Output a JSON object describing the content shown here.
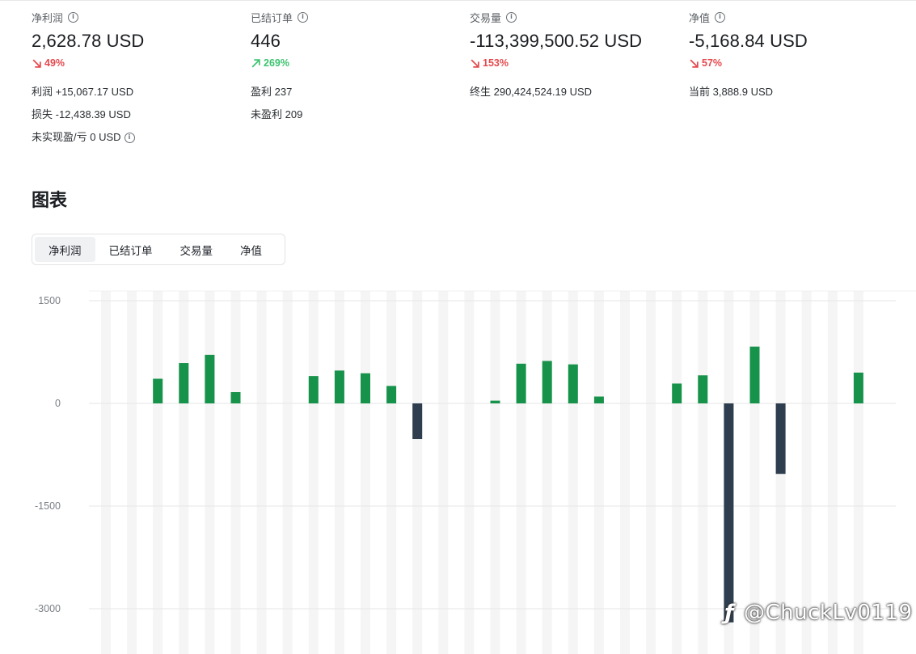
{
  "stats": [
    {
      "label": "净利润",
      "value": "2,628.78 USD",
      "change": "49%",
      "direction": "down",
      "details": [
        "利润 +15,067.17 USD",
        "损失 -12,438.39 USD",
        "未实现盈/亏 0 USD"
      ]
    },
    {
      "label": "已结订单",
      "value": "446",
      "change": "269%",
      "direction": "up",
      "details": [
        "盈利 237",
        "未盈利 209"
      ]
    },
    {
      "label": "交易量",
      "value": "-113,399,500.52 USD",
      "change": "153%",
      "direction": "down",
      "details": [
        "终生 290,424,524.19 USD"
      ]
    },
    {
      "label": "净值",
      "value": "-5,168.84 USD",
      "change": "57%",
      "direction": "down",
      "details": [
        "当前 3,888.9 USD"
      ]
    }
  ],
  "section": {
    "title": "图表"
  },
  "tabs": [
    {
      "label": "净利润",
      "active": true
    },
    {
      "label": "已结订单",
      "active": false
    },
    {
      "label": "交易量",
      "active": false
    },
    {
      "label": "净值",
      "active": false
    }
  ],
  "colors": {
    "positive": "#17924a",
    "negative": "#2e3e4e",
    "up": "#3cc46f",
    "down": "#e5484d",
    "stripe": "#f5f5f5",
    "grid": "#e6e6e6"
  },
  "watermark": {
    "text": "@ChuckLv0119",
    "icon": "brand-logo-icon"
  },
  "chart_data": {
    "type": "bar",
    "title": "",
    "xlabel": "",
    "ylabel": "",
    "ylim": [
      -3000,
      1500
    ],
    "yticks": [
      1500,
      0,
      -1500,
      -3000
    ],
    "grid": true,
    "series": [
      {
        "values": [
          0,
          0,
          360,
          590,
          710,
          165,
          0,
          0,
          400,
          480,
          440,
          255,
          -520,
          0,
          0,
          40,
          580,
          620,
          570,
          100,
          0,
          0,
          290,
          410,
          -3200,
          830,
          -1030,
          0,
          0,
          450
        ]
      }
    ]
  }
}
